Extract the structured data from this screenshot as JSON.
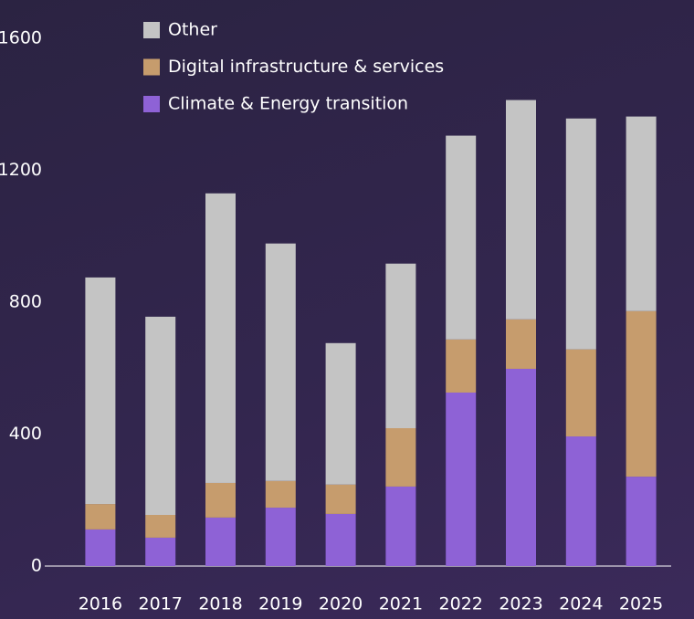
{
  "chart_data": {
    "type": "stacked_bar",
    "categories": [
      "2016",
      "2017",
      "2018",
      "2019",
      "2020",
      "2021",
      "2022",
      "2023",
      "2024",
      "2025"
    ],
    "series": [
      {
        "name": "Climate & Energy transition",
        "color": "#8e62d6",
        "values": [
          111,
          86,
          147,
          177,
          158,
          241,
          526,
          598,
          393,
          271
        ]
      },
      {
        "name": "Digital infrastructure & services",
        "color": "#c69c6d",
        "values": [
          77,
          69,
          105,
          81,
          89,
          177,
          161,
          150,
          264,
          502
        ]
      },
      {
        "name": "Other",
        "color": "#c4c4c4",
        "values": [
          687,
          601,
          878,
          720,
          429,
          499,
          618,
          665,
          700,
          590
        ]
      }
    ],
    "ylim": [
      0,
      1600
    ],
    "yticks": [
      0,
      400,
      800,
      1200,
      1600
    ],
    "grid": false,
    "legend": "top"
  }
}
